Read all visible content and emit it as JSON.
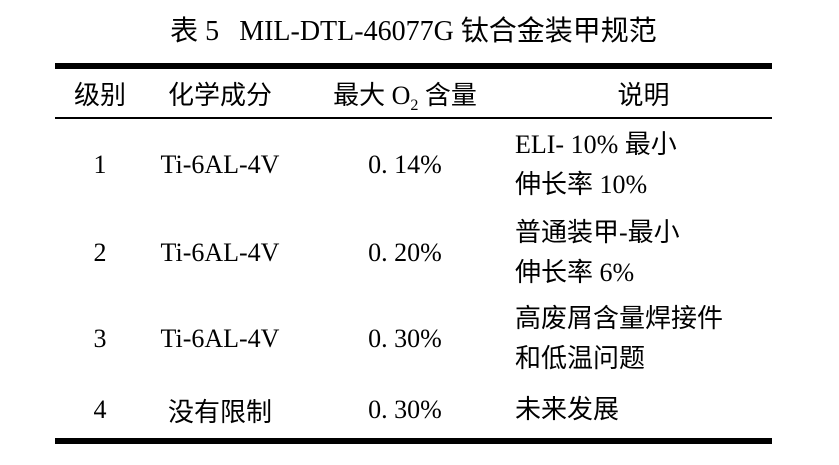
{
  "caption": {
    "table_number": "表 5",
    "title": "MIL-DTL-46077G 钛合金装甲规范"
  },
  "table": {
    "headers": {
      "grade": "级别",
      "composition": "化学成分",
      "max_o2_pre": "最大 O",
      "max_o2_sub": "2",
      "max_o2_post": " 含量",
      "notes": "说明"
    },
    "rows": [
      {
        "grade": "1",
        "composition": "Ti-6AL-4V",
        "max_o2": "0. 14%",
        "note_line1": "ELI- 10% 最小",
        "note_line2": "伸长率 10%"
      },
      {
        "grade": "2",
        "composition": "Ti-6AL-4V",
        "max_o2": "0. 20%",
        "note_line1": "普通装甲-最小",
        "note_line2": "伸长率 6%"
      },
      {
        "grade": "3",
        "composition": "Ti-6AL-4V",
        "max_o2": "0. 30%",
        "note_line1": "高废屑含量焊接件",
        "note_line2": "和低温问题"
      },
      {
        "grade": "4",
        "composition": "没有限制",
        "max_o2": "0. 30%",
        "note_line1": "未来发展"
      }
    ]
  },
  "colors": {
    "text": "#000000",
    "rule": "#000000",
    "background": "#ffffff"
  }
}
